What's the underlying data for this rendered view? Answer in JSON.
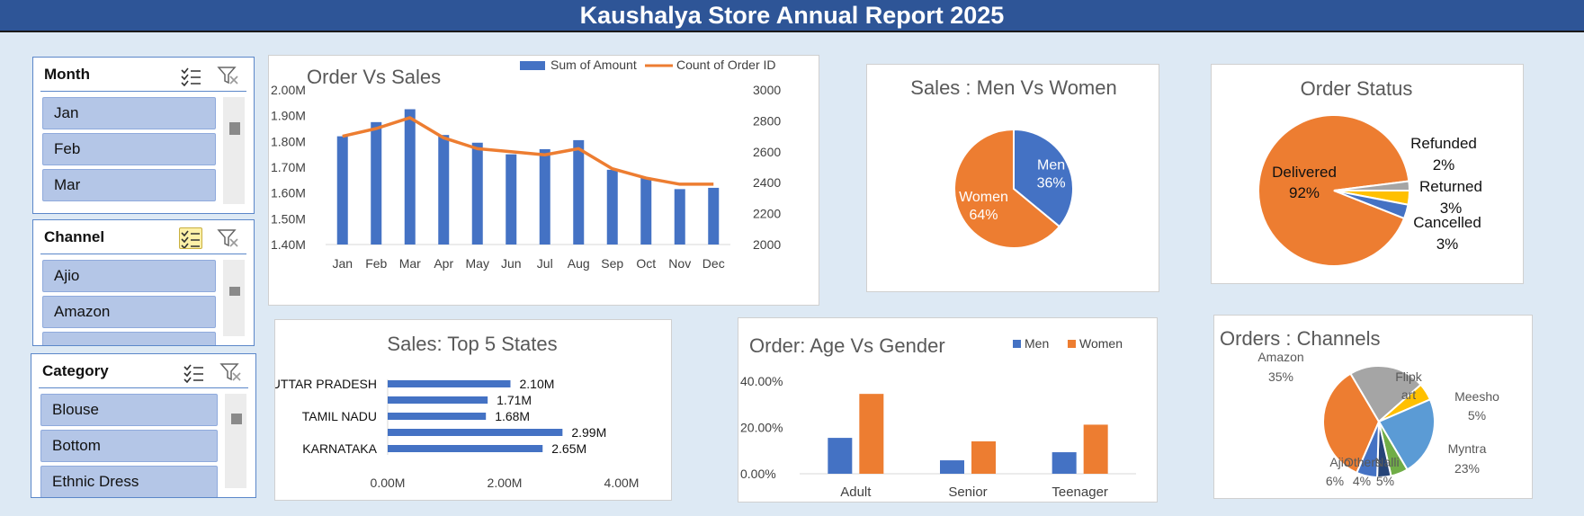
{
  "title": "Kaushalya Store Annual Report 2025",
  "colors": {
    "blue": "#4472c4",
    "orange": "#ed7d31",
    "gray": "#a5a5a5",
    "yellow": "#ffc000",
    "green": "#70ad47",
    "navy": "#264478",
    "lightblue": "#5b9bd5"
  },
  "slicers": [
    {
      "title": "Month",
      "items": [
        "Jan",
        "Feb",
        "Mar"
      ],
      "multi_select_icon": "multi-select-icon",
      "clear_icon": "clear-filter-icon"
    },
    {
      "title": "Channel",
      "items": [
        "Ajio",
        "Amazon"
      ],
      "multi_select_icon": "multi-select-icon",
      "clear_icon": "clear-filter-icon"
    },
    {
      "title": "Category",
      "items": [
        "Blouse",
        "Bottom",
        "Ethnic Dress"
      ],
      "multi_select_icon": "multi-select-icon",
      "clear_icon": "clear-filter-icon"
    }
  ],
  "chart_data": [
    {
      "id": "order-vs-sales",
      "type": "bar",
      "title": "Order Vs Sales",
      "categories": [
        "Jan",
        "Feb",
        "Mar",
        "Apr",
        "May",
        "Jun",
        "Jul",
        "Aug",
        "Sep",
        "Oct",
        "Nov",
        "Dec"
      ],
      "series": [
        {
          "name": "Sum of Amount",
          "type": "bar",
          "axis": "left",
          "values": [
            1.82,
            1.875,
            1.925,
            1.825,
            1.795,
            1.75,
            1.77,
            1.805,
            1.69,
            1.66,
            1.615,
            1.62
          ]
        },
        {
          "name": "Count of Order ID",
          "type": "line",
          "axis": "right",
          "values": [
            2700,
            2750,
            2820,
            2690,
            2620,
            2600,
            2580,
            2620,
            2490,
            2430,
            2390,
            2390
          ]
        }
      ],
      "ylim": [
        1.4,
        2.0
      ],
      "yticks": [
        "1.40M",
        "1.50M",
        "1.60M",
        "1.70M",
        "1.80M",
        "1.90M",
        "2.00M"
      ],
      "y2lim": [
        2000,
        3000
      ],
      "y2ticks": [
        "2000",
        "2200",
        "2400",
        "2600",
        "2800",
        "3000"
      ],
      "legend": "top-right"
    },
    {
      "id": "men-vs-women",
      "type": "pie",
      "title": "Sales : Men Vs Women",
      "labels": [
        "Men",
        "Women"
      ],
      "values": [
        36,
        64
      ],
      "value_labels": [
        "36%",
        "64%"
      ]
    },
    {
      "id": "order-status",
      "type": "pie",
      "title": "Order Status",
      "labels": [
        "Delivered",
        "Refunded",
        "Returned",
        "Cancelled"
      ],
      "values": [
        92,
        2,
        3,
        3
      ],
      "value_labels": [
        "92%",
        "2%",
        "3%",
        "3%"
      ]
    },
    {
      "id": "top-5-states",
      "type": "bar",
      "orientation": "horizontal",
      "title": "Sales: Top 5 States",
      "categories": [
        "UTTAR PRADESH",
        "",
        "TAMIL NADU",
        "",
        "KARNATAKA"
      ],
      "values": [
        2.1,
        1.71,
        1.68,
        2.99,
        2.65
      ],
      "value_labels": [
        "2.10M",
        "1.71M",
        "1.68M",
        "2.99M",
        "2.65M"
      ],
      "xlim": [
        0,
        4
      ],
      "xticks": [
        "0.00M",
        "2.00M",
        "4.00M"
      ]
    },
    {
      "id": "age-vs-gender",
      "type": "bar",
      "title": "Order: Age Vs Gender",
      "categories": [
        "Adult",
        "Senior",
        "Teenager"
      ],
      "series": [
        {
          "name": "Men",
          "values": [
            15.5,
            5.8,
            9.3
          ]
        },
        {
          "name": "Women",
          "values": [
            34.5,
            14.0,
            21.2
          ]
        }
      ],
      "ylim": [
        0,
        40
      ],
      "yticks": [
        "0.00%",
        "20.00%",
        "40.00%"
      ],
      "legend": "top-right"
    },
    {
      "id": "orders-channels",
      "type": "pie",
      "title": "Orders : Channels",
      "labels": [
        "Amazon",
        "Flipk art",
        "Meesho",
        "Myntra",
        "Nalli",
        "Others",
        "Ajio"
      ],
      "values": [
        35,
        22,
        5,
        23,
        5,
        4,
        6
      ],
      "value_labels": [
        "35%",
        "",
        "5%",
        "23%",
        "5%",
        "4%",
        "6%"
      ]
    }
  ]
}
